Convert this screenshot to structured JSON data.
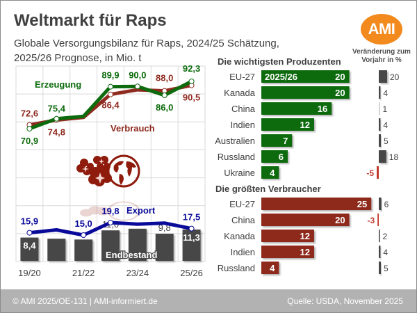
{
  "header": {
    "title": "Weltmarkt für Raps",
    "subtitle_line1": "Globale Versorgungsbilanz für Raps, 2024/25 Schätzung,",
    "subtitle_line2": "2025/26 Prognose, in Mio. t",
    "logo_text": "AMI"
  },
  "change_header": {
    "line1": "Veränderung zum",
    "line2": "Vorjahr in %"
  },
  "footer": {
    "left": "© AMI 2025/OE-131 | AMI-informiert.de",
    "right": "Quelle: USDA, November 2025"
  },
  "colors": {
    "production": "#0d6b0d",
    "consumption": "#8e2a1e",
    "export": "#0a0a9a",
    "stocks": "#474747",
    "negative": "#c0392b",
    "grid": "#d9d9d9",
    "logo": "#f28a1e"
  },
  "chart_data": [
    {
      "type": "line",
      "title": "Globale Versorgungsbilanz für Raps",
      "x": [
        "19/20",
        "20/21",
        "21/22",
        "22/23",
        "23/24",
        "24/25",
        "25/26"
      ],
      "x_tick_labels": [
        "19/20",
        "21/22",
        "23/24",
        "25/26"
      ],
      "unit": "Mio. t",
      "grid": true,
      "series": [
        {
          "name": "Erzeugung",
          "values": [
            70.9,
            75.4,
            76.5,
            89.9,
            90.0,
            86.0,
            92.3
          ],
          "labeled": [
            true,
            true,
            false,
            true,
            true,
            true,
            true
          ]
        },
        {
          "name": "Verbrauch",
          "values": [
            72.6,
            74.8,
            76.0,
            86.4,
            88.5,
            88.0,
            90.5
          ],
          "labeled": [
            true,
            true,
            false,
            true,
            false,
            true,
            true
          ]
        },
        {
          "name": "Export",
          "values": [
            15.9,
            17.0,
            15.0,
            19.8,
            19.2,
            19.6,
            17.5
          ],
          "labeled": [
            true,
            false,
            true,
            true,
            false,
            false,
            true
          ]
        },
        {
          "name": "Endbestand",
          "type": "bar",
          "values": [
            8.4,
            8.0,
            7.7,
            11.0,
            11.6,
            9.8,
            11.3
          ],
          "labeled": [
            true,
            false,
            false,
            true,
            false,
            true,
            true
          ]
        }
      ],
      "labels": {
        "production": "Erzeugung",
        "consumption": "Verbrauch",
        "export": "Export",
        "stocks": "Endbestand"
      }
    },
    {
      "type": "bar",
      "title": "Die wichtigsten Produzenten",
      "year_label": "2025/26",
      "categories": [
        "EU-27",
        "Kanada",
        "China",
        "Indien",
        "Australien",
        "Russland",
        "Ukraine"
      ],
      "values": [
        20,
        20,
        16,
        12,
        7,
        6,
        4
      ],
      "change_pct": [
        20,
        4,
        1,
        4,
        5,
        18,
        -5
      ]
    },
    {
      "type": "bar",
      "title": "Die größten Verbraucher",
      "categories": [
        "EU-27",
        "China",
        "Kanada",
        "Indien",
        "Russland"
      ],
      "values": [
        25,
        20,
        12,
        12,
        4
      ],
      "change_pct": [
        6,
        -3,
        2,
        4,
        5
      ]
    }
  ]
}
